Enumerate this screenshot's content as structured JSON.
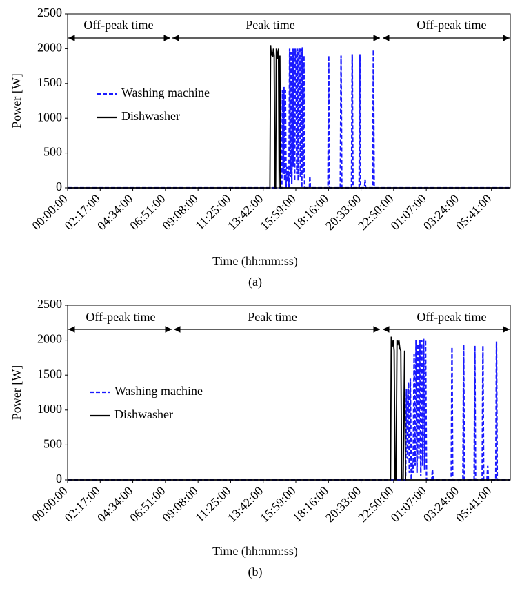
{
  "chart_data": [
    {
      "type": "line",
      "caption": "(a)",
      "x_label": "Time (hh:mm:ss)",
      "y_label": "Power [W]",
      "annotations": [
        "Off-peak time",
        "Peak time",
        "Off-peak time"
      ],
      "xlim": [
        0,
        1860
      ],
      "ylim": [
        0,
        2500
      ],
      "yticks": [
        0,
        500,
        1000,
        1500,
        2000,
        2500
      ],
      "xticks": [
        {
          "value": 0,
          "label": "00:00:00"
        },
        {
          "value": 137,
          "label": "02:17:00"
        },
        {
          "value": 274,
          "label": "04:34:00"
        },
        {
          "value": 411,
          "label": "06:51:00"
        },
        {
          "value": 548,
          "label": "09:08:00"
        },
        {
          "value": 685,
          "label": "11:25:00"
        },
        {
          "value": 822,
          "label": "13:42:00"
        },
        {
          "value": 959,
          "label": "15:59:00"
        },
        {
          "value": 1096,
          "label": "18:16:00"
        },
        {
          "value": 1233,
          "label": "20:33:00"
        },
        {
          "value": 1370,
          "label": "22:50:00"
        },
        {
          "value": 1507,
          "label": "01:07:00"
        },
        {
          "value": 1644,
          "label": "03:24:00"
        },
        {
          "value": 1781,
          "label": "05:41:00"
        }
      ],
      "series": [
        {
          "name": "Washing machine",
          "color": "#1a1aff",
          "dash": true,
          "x": [
            0,
            900,
            903,
            906,
            909,
            912,
            915,
            918,
            921,
            924,
            927,
            930,
            933,
            936,
            939,
            942,
            945,
            948,
            951,
            954,
            957,
            960,
            963,
            966,
            969,
            972,
            975,
            978,
            981,
            984,
            987,
            990,
            993,
            996,
            1016,
            1018,
            1020,
            1094,
            1097,
            1100,
            1146,
            1149,
            1152,
            1193,
            1196,
            1199,
            1225,
            1228,
            1231,
            1248,
            1250,
            1252,
            1282,
            1285,
            1288,
            1860
          ],
          "values": [
            0,
            0,
            1400,
            200,
            1450,
            100,
            1400,
            0,
            300,
            100,
            250,
            0,
            2000,
            150,
            1950,
            50,
            2000,
            300,
            2000,
            100,
            2000,
            1800,
            200,
            2000,
            100,
            1950,
            2000,
            150,
            2000,
            0,
            2020,
            200,
            1900,
            0,
            0,
            170,
            0,
            0,
            1900,
            0,
            0,
            1900,
            0,
            0,
            1920,
            0,
            0,
            1920,
            0,
            0,
            120,
            0,
            0,
            1980,
            0,
            0
          ]
        },
        {
          "name": "Dishwasher",
          "color": "#000000",
          "dash": false,
          "x": [
            0,
            850,
            853,
            856,
            859,
            862,
            865,
            868,
            871,
            874,
            877,
            880,
            883,
            886,
            889,
            892,
            895,
            1860
          ],
          "values": [
            0,
            0,
            2050,
            1900,
            1950,
            1880,
            2000,
            1900,
            0,
            0,
            2000,
            1950,
            1850,
            2000,
            0,
            1900,
            0,
            0
          ]
        }
      ]
    },
    {
      "type": "line",
      "caption": "(b)",
      "x_label": "Time (hh:mm:ss)",
      "y_label": "Power [W]",
      "annotations": [
        "Off-peak time",
        "Peak time",
        "Off-peak time"
      ],
      "xlim": [
        0,
        1860
      ],
      "ylim": [
        0,
        2500
      ],
      "yticks": [
        0,
        500,
        1000,
        1500,
        2000,
        2500
      ],
      "xticks": [
        {
          "value": 0,
          "label": "00:00:00"
        },
        {
          "value": 137,
          "label": "02:17:00"
        },
        {
          "value": 274,
          "label": "04:34:00"
        },
        {
          "value": 411,
          "label": "06:51:00"
        },
        {
          "value": 548,
          "label": "09:08:00"
        },
        {
          "value": 685,
          "label": "11:25:00"
        },
        {
          "value": 822,
          "label": "13:42:00"
        },
        {
          "value": 959,
          "label": "15:59:00"
        },
        {
          "value": 1096,
          "label": "18:16:00"
        },
        {
          "value": 1233,
          "label": "20:33:00"
        },
        {
          "value": 1370,
          "label": "22:50:00"
        },
        {
          "value": 1507,
          "label": "01:07:00"
        },
        {
          "value": 1644,
          "label": "03:24:00"
        },
        {
          "value": 1781,
          "label": "05:41:00"
        }
      ],
      "series": [
        {
          "name": "Washing machine",
          "color": "#1a1aff",
          "dash": true,
          "x": [
            0,
            1420,
            1424,
            1428,
            1432,
            1436,
            1440,
            1444,
            1448,
            1452,
            1456,
            1460,
            1464,
            1468,
            1472,
            1476,
            1480,
            1484,
            1488,
            1492,
            1496,
            1500,
            1504,
            1508,
            1512,
            1530,
            1533,
            1536,
            1612,
            1615,
            1618,
            1661,
            1664,
            1667,
            1708,
            1711,
            1714,
            1742,
            1745,
            1748,
            1762,
            1765,
            1768,
            1799,
            1802,
            1805,
            1860
          ],
          "values": [
            0,
            0,
            1300,
            300,
            1400,
            100,
            1450,
            0,
            250,
            100,
            1800,
            200,
            2000,
            100,
            1950,
            300,
            2000,
            50,
            2000,
            200,
            2020,
            150,
            2000,
            0,
            0,
            0,
            150,
            0,
            0,
            1900,
            0,
            0,
            1940,
            0,
            0,
            1920,
            0,
            0,
            1920,
            0,
            0,
            200,
            0,
            0,
            1980,
            0,
            0
          ]
        },
        {
          "name": "Dishwasher",
          "color": "#000000",
          "dash": false,
          "x": [
            0,
            1357,
            1360,
            1364,
            1368,
            1372,
            1376,
            1380,
            1384,
            1388,
            1392,
            1396,
            1400,
            1404,
            1410,
            1416,
            1420,
            1860
          ],
          "values": [
            0,
            0,
            2050,
            1900,
            2000,
            1850,
            0,
            0,
            2000,
            1950,
            2000,
            1880,
            1850,
            0,
            0,
            1850,
            0,
            0
          ]
        }
      ]
    }
  ]
}
